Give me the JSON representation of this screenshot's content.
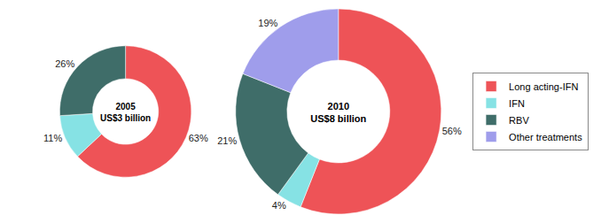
{
  "chart_data": [
    {
      "type": "pie",
      "title": "2005",
      "subtitle": "US$3 billion",
      "categories": [
        "Long acting-IFN",
        "IFN",
        "RBV"
      ],
      "values": [
        63,
        11,
        26
      ],
      "value_labels": [
        "63%",
        "11%",
        "26%"
      ],
      "colors": [
        "#ee5357",
        "#86e2e4",
        "#3f6d69"
      ],
      "data_labels": true,
      "legend": "right"
    },
    {
      "type": "pie",
      "title": "2010",
      "subtitle": "US$8 billion",
      "categories": [
        "Long acting-IFN",
        "IFN",
        "RBV",
        "Other treatments"
      ],
      "values": [
        56,
        4,
        21,
        19
      ],
      "value_labels": [
        "56%",
        "4%",
        "21%",
        "19%"
      ],
      "colors": [
        "#ee5357",
        "#86e2e4",
        "#3f6d69",
        "#9f9deb"
      ],
      "data_labels": true,
      "legend": "right"
    }
  ]
}
